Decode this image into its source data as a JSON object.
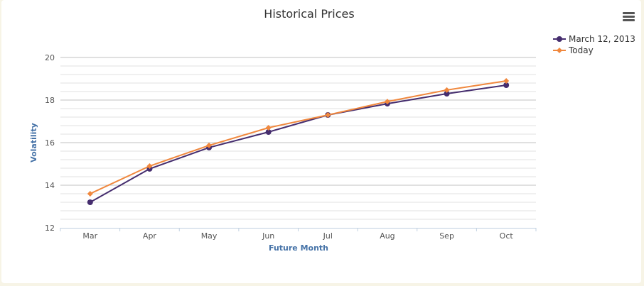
{
  "menu_icon": "hamburger-menu-icon",
  "chart_data": {
    "type": "line",
    "title": "Historical Prices",
    "xlabel": "Future Month",
    "ylabel": "Volatility",
    "categories": [
      "Mar",
      "Apr",
      "May",
      "Jun",
      "Jul",
      "Aug",
      "Sep",
      "Oct"
    ],
    "ylim": [
      12,
      20
    ],
    "yticks": [
      12,
      14,
      16,
      18,
      20
    ],
    "minor_grid_step": 0.4,
    "grid": true,
    "legend_position": "top-right",
    "series": [
      {
        "name": "March 12, 2013",
        "color": "#452d6e",
        "marker": "circle",
        "values": [
          13.2,
          14.77,
          15.77,
          16.5,
          17.3,
          17.83,
          18.3,
          18.7
        ]
      },
      {
        "name": "Today",
        "color": "#f0883e",
        "marker": "diamond",
        "values": [
          13.6,
          14.9,
          15.87,
          16.7,
          17.3,
          17.93,
          18.47,
          18.9
        ]
      }
    ]
  }
}
